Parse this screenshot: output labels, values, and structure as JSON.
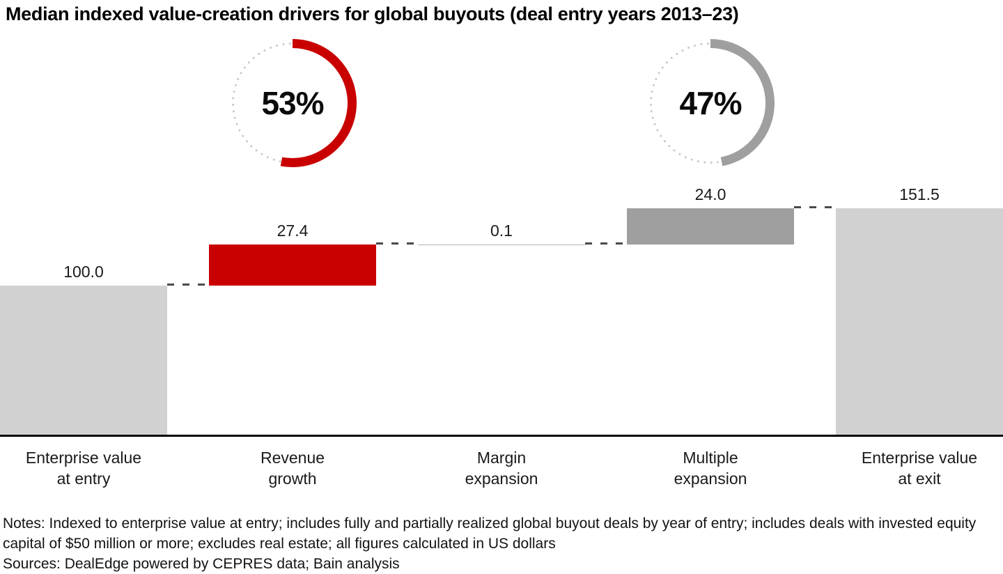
{
  "title": "Median indexed value-creation drivers for global buyouts (deal entry years 2013–23)",
  "donuts": [
    {
      "name": "revenue-growth-share",
      "percent": 53,
      "label": "53%",
      "color": "#c90000"
    },
    {
      "name": "multiple-expansion-share",
      "percent": 47,
      "label": "47%",
      "color": "#9f9f9f"
    }
  ],
  "chart_data": {
    "type": "waterfall",
    "title": "Median indexed value-creation drivers for global buyouts (deal entry years 2013-23)",
    "ylim": [
      0,
      170
    ],
    "grid": false,
    "legend": false,
    "steps": [
      {
        "name": "enterprise-value-at-entry",
        "category": [
          "Enterprise value",
          "at entry"
        ],
        "start": 0,
        "end": 100.0,
        "value": 100.0,
        "label": "100.0",
        "kind": "total",
        "color_key": "lightgray"
      },
      {
        "name": "revenue-growth",
        "category": [
          "Revenue",
          "growth"
        ],
        "start": 100.0,
        "end": 127.4,
        "value": 27.4,
        "label": "27.4",
        "kind": "increase",
        "color_key": "red"
      },
      {
        "name": "margin-expansion",
        "category": [
          "Margin",
          "expansion"
        ],
        "start": 127.4,
        "end": 127.5,
        "value": 0.1,
        "label": "0.1",
        "kind": "increase",
        "color_key": "hairline"
      },
      {
        "name": "multiple-expansion",
        "category": [
          "Multiple",
          "expansion"
        ],
        "start": 127.5,
        "end": 151.5,
        "value": 24.0,
        "label": "24.0",
        "kind": "increase",
        "color_key": "midgray"
      },
      {
        "name": "enterprise-value-at-exit",
        "category": [
          "Enterprise value",
          "at exit"
        ],
        "start": 0,
        "end": 151.5,
        "value": 151.5,
        "label": "151.5",
        "kind": "total",
        "color_key": "lightgray"
      }
    ]
  },
  "colors": {
    "red": "#c90000",
    "midgray": "#9f9f9f",
    "lightgray": "#d1d1d1",
    "hairline": "#b3b3b3",
    "connector": "#4a4a4a",
    "donut_dots": "#c9c9c9",
    "axis": "#000000"
  },
  "notes": "Notes: Indexed to enterprise value at entry; includes fully and partially realized global buyout deals by year of entry; includes deals with invested equity capital of $50 million or more; excludes real estate; all figures calculated in US dollars",
  "sources": "Sources: DealEdge powered by CEPRES data; Bain analysis"
}
